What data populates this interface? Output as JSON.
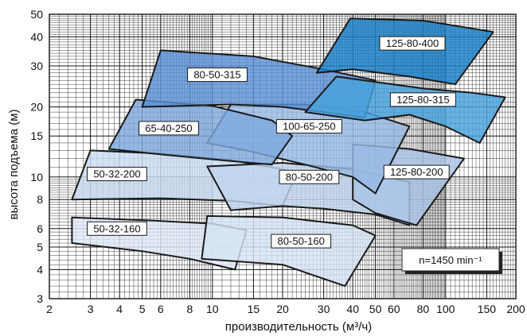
{
  "chart_data": {
    "type": "area",
    "xlabel": "производительность (м³/ч)",
    "ylabel": "высота подъема (м)",
    "x_scale": "log",
    "y_scale": "log",
    "xlim": [
      2,
      200
    ],
    "ylim": [
      3,
      50
    ],
    "x_ticks": [
      {
        "value": 2,
        "label": "2"
      },
      {
        "value": 3,
        "label": "3"
      },
      {
        "value": 4,
        "label": "4"
      },
      {
        "value": 5,
        "label": "5"
      },
      {
        "value": 6,
        "label": "6"
      },
      {
        "value": 8,
        "label": "8"
      },
      {
        "value": 10,
        "label": "10"
      },
      {
        "value": 15,
        "label": "15"
      },
      {
        "value": 20,
        "label": "20"
      },
      {
        "value": 30,
        "label": "30"
      },
      {
        "value": 40,
        "label": "40"
      },
      {
        "value": 50,
        "label": "50"
      },
      {
        "value": 60,
        "label": "60"
      },
      {
        "value": 80,
        "label": "80"
      },
      {
        "value": 100,
        "label": "100"
      },
      {
        "value": 150,
        "label": "150"
      },
      {
        "value": 200,
        "label": "200"
      }
    ],
    "y_ticks": [
      {
        "value": 3,
        "label": "3"
      },
      {
        "value": 4,
        "label": "4"
      },
      {
        "value": 5,
        "label": "5"
      },
      {
        "value": 6,
        "label": "6"
      },
      {
        "value": 8,
        "label": "8"
      },
      {
        "value": 10,
        "label": "10"
      },
      {
        "value": 15,
        "label": "15"
      },
      {
        "value": 20,
        "label": "20"
      },
      {
        "value": 30,
        "label": "30"
      },
      {
        "value": 40,
        "label": "40"
      },
      {
        "value": 50,
        "label": "50"
      }
    ],
    "grid": true,
    "note": "n=1450 min⁻¹",
    "series": [
      {
        "name": "50-32-160",
        "color": "#dde8f6",
        "polygon": [
          [
            2.5,
            6.7
          ],
          [
            5.5,
            6.5
          ],
          [
            10,
            6.3
          ],
          [
            14,
            5.9
          ],
          [
            12.5,
            4.0
          ],
          [
            8,
            4.45
          ],
          [
            5,
            4.8
          ],
          [
            2.5,
            5.2
          ]
        ],
        "label_at": [
          3.9,
          6.0
        ]
      },
      {
        "name": "80-50-160",
        "color": "#d4e3f4",
        "polygon": [
          [
            9.5,
            6.8
          ],
          [
            20,
            6.7
          ],
          [
            40,
            6.2
          ],
          [
            50,
            5.6
          ],
          [
            37,
            3.4
          ],
          [
            20,
            4.2
          ],
          [
            9,
            4.45
          ]
        ],
        "label_at": [
          24,
          5.3
        ]
      },
      {
        "name": "50-32-200",
        "color": "#c8daf0",
        "polygon": [
          [
            3,
            13
          ],
          [
            6,
            12.6
          ],
          [
            12,
            11.8
          ],
          [
            18,
            11
          ],
          [
            23,
            10.5
          ],
          [
            20,
            7.5
          ],
          [
            12,
            7.9
          ],
          [
            6,
            8.1
          ],
          [
            2.5,
            8.0
          ]
        ],
        "label_at": [
          3.9,
          10.3
        ]
      },
      {
        "name": "80-50-200",
        "color": "#bfd4ee",
        "polygon": [
          [
            9.5,
            11.1
          ],
          [
            20,
            11.5
          ],
          [
            40,
            10.8
          ],
          [
            70,
            9.5
          ],
          [
            70,
            6.2
          ],
          [
            50,
            6.9
          ],
          [
            30,
            7.3
          ],
          [
            20,
            7.5
          ],
          [
            12,
            7.2
          ]
        ],
        "label_at": [
          26,
          10.0
        ]
      },
      {
        "name": "125-80-200",
        "color": "#a9c5e8",
        "polygon": [
          [
            40,
            13.8
          ],
          [
            70,
            13.2
          ],
          [
            120,
            12.0
          ],
          [
            75,
            6.2
          ],
          [
            50,
            7.0
          ],
          [
            40,
            8.0
          ]
        ],
        "label_at": [
          75,
          10.5
        ]
      },
      {
        "name": "100-65-250",
        "color": "#96b8e3",
        "polygon": [
          [
            12,
            20.5
          ],
          [
            25,
            20.5
          ],
          [
            45,
            19.0
          ],
          [
            70,
            16.5
          ],
          [
            50,
            8.5
          ],
          [
            40,
            10.0
          ],
          [
            25,
            11.3
          ],
          [
            14,
            13.0
          ],
          [
            9.5,
            14.0
          ]
        ],
        "label_at": [
          26,
          16.5
        ]
      },
      {
        "name": "65-40-250",
        "color": "#7ea8dd",
        "polygon": [
          [
            4.7,
            21.5
          ],
          [
            10,
            20.2
          ],
          [
            18,
            17.5
          ],
          [
            22,
            15
          ],
          [
            18,
            11.3
          ],
          [
            12,
            11.7
          ],
          [
            6,
            12.5
          ],
          [
            3.6,
            13.2
          ]
        ],
        "label_at": [
          6.5,
          16.2
        ]
      },
      {
        "name": "80-50-315",
        "color": "#5c8fd3",
        "polygon": [
          [
            6,
            35
          ],
          [
            15,
            33
          ],
          [
            30,
            29
          ],
          [
            50,
            26
          ],
          [
            45,
            18
          ],
          [
            30,
            19
          ],
          [
            20,
            20
          ],
          [
            12,
            20.5
          ],
          [
            5,
            20
          ]
        ],
        "label_at": [
          10.5,
          27.5
        ]
      },
      {
        "name": "125-80-315",
        "color": "#47a2dd",
        "polygon": [
          [
            34,
            27
          ],
          [
            80,
            24
          ],
          [
            130,
            23
          ],
          [
            180,
            22
          ],
          [
            140,
            14
          ],
          [
            100,
            16.5
          ],
          [
            70,
            18.5
          ],
          [
            45,
            17.5
          ],
          [
            25,
            19
          ]
        ],
        "label_at": [
          80,
          21.5
        ]
      },
      {
        "name": "125-80-400",
        "color": "#177fc7",
        "polygon": [
          [
            39,
            48
          ],
          [
            80,
            47
          ],
          [
            160,
            42
          ],
          [
            110,
            25
          ],
          [
            70,
            27
          ],
          [
            40,
            29
          ],
          [
            28,
            28
          ]
        ],
        "label_at": [
          72,
          37.5
        ]
      }
    ]
  }
}
